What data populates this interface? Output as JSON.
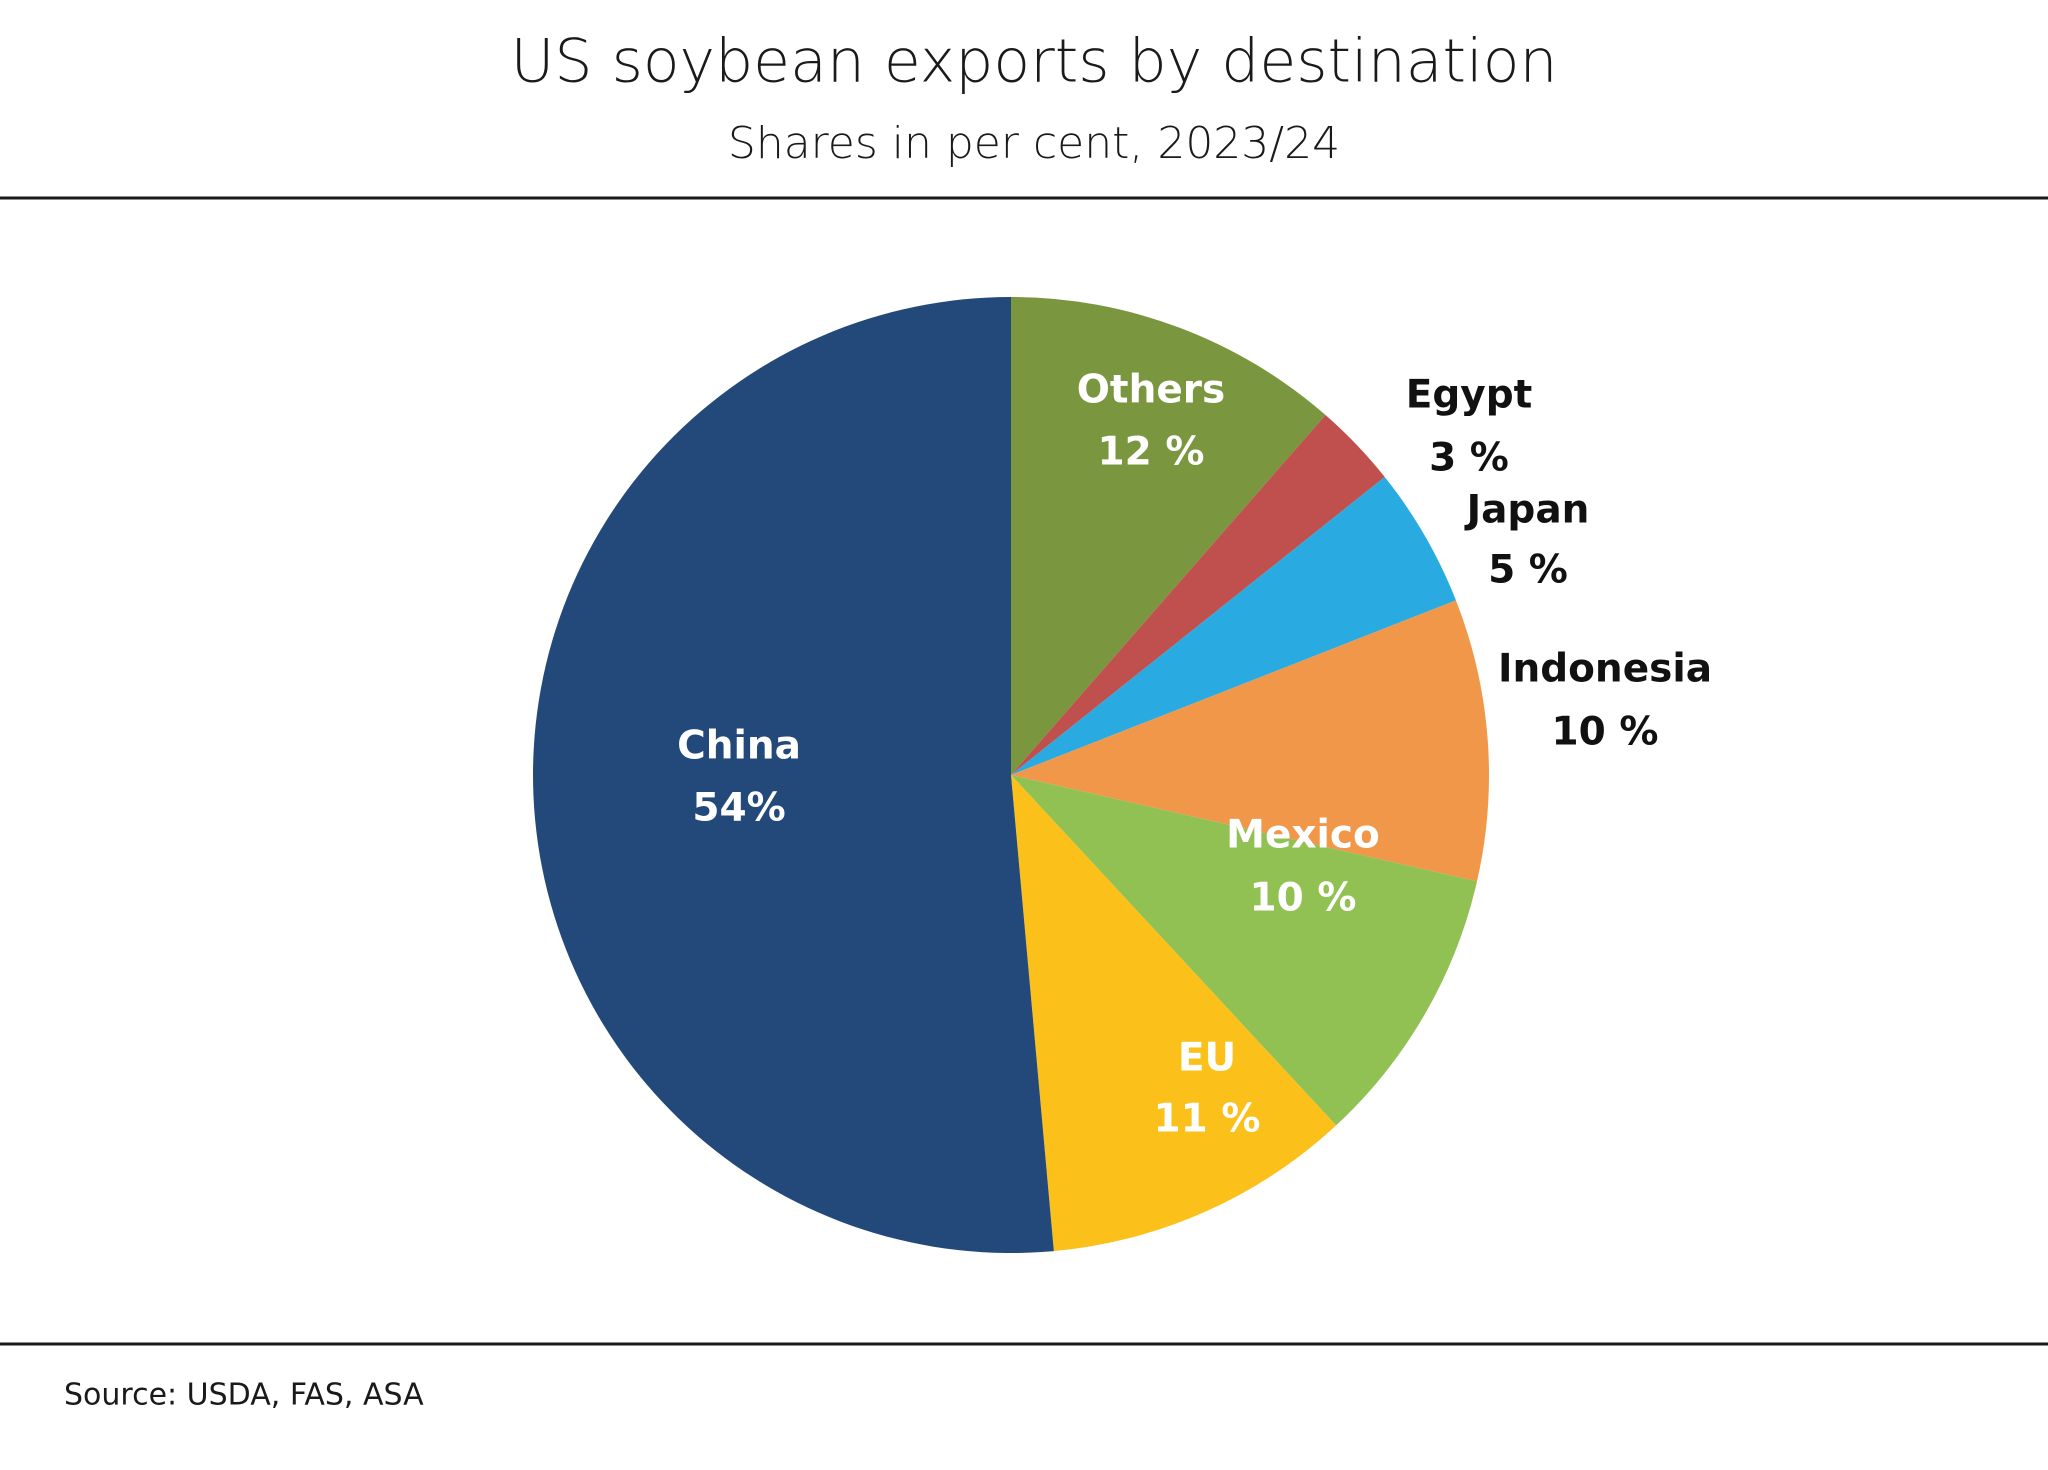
{
  "chart_data": {
    "type": "pie",
    "title": "US soybean exports by destination",
    "subtitle": "Shares in per cent, 2023/24",
    "source": "Source:  USDA, FAS, ASA",
    "categories": [
      "Others",
      "Egypt",
      "Japan",
      "Indonesia",
      "Mexico",
      "EU",
      "China"
    ],
    "values": [
      12,
      3,
      5,
      10,
      10,
      11,
      54
    ],
    "value_labels": [
      "12 %",
      "3 %",
      "5 %",
      "10 %",
      "10 %",
      "11 %",
      "54%"
    ],
    "colors": [
      "#7a963e",
      "#c0504d",
      "#29abe2",
      "#f0974a",
      "#92c153",
      "#fbc01a",
      "#23497a"
    ]
  }
}
